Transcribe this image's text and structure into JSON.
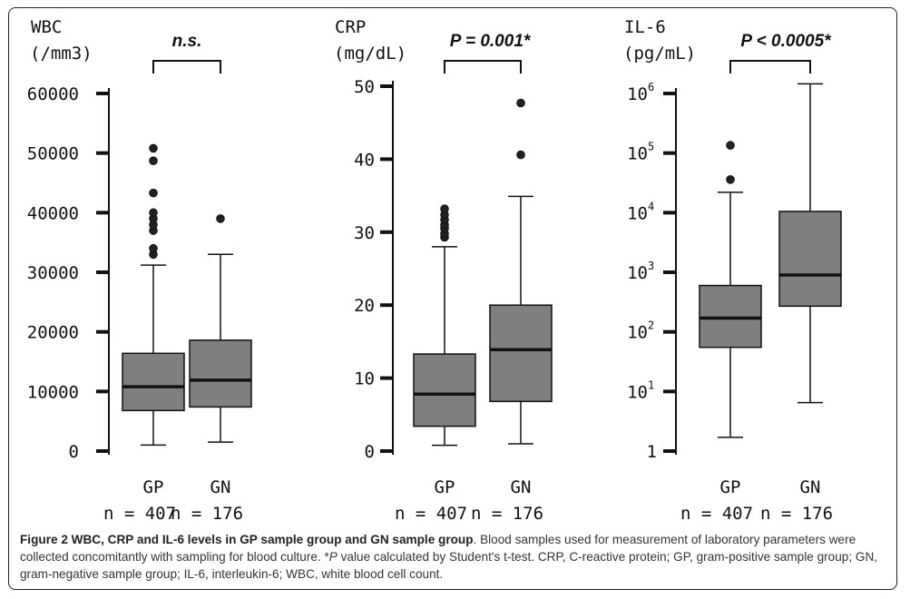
{
  "chart_data": [
    {
      "type": "box",
      "title": "WBC",
      "unit_label": "(/mm3)",
      "ylim": [
        0,
        60000
      ],
      "scale": "linear",
      "ticks": [
        {
          "v": 0,
          "t": "0"
        },
        {
          "v": 10000,
          "t": "10000"
        },
        {
          "v": 20000,
          "t": "20000"
        },
        {
          "v": 30000,
          "t": "30000"
        },
        {
          "v": 40000,
          "t": "40000"
        },
        {
          "v": 50000,
          "t": "50000"
        },
        {
          "v": 60000,
          "t": "60000"
        }
      ],
      "significance": "n.s.",
      "groups": [
        {
          "name": "GP",
          "n_label": "n = 407",
          "min": 1000,
          "q1": 6800,
          "median": 10800,
          "q3": 16400,
          "max": 31200,
          "outliers": [
            33000,
            34000,
            37000,
            38000,
            39000,
            40000,
            43300,
            48700,
            50800
          ]
        },
        {
          "name": "GN",
          "n_label": "n = 176",
          "min": 1500,
          "q1": 7400,
          "median": 11900,
          "q3": 18600,
          "max": 33000,
          "outliers": [
            39000
          ]
        }
      ]
    },
    {
      "type": "box",
      "title": "CRP",
      "unit_label": "(mg/dL)",
      "ylim": [
        0,
        50
      ],
      "scale": "linear",
      "ticks": [
        {
          "v": 0,
          "t": "0"
        },
        {
          "v": 10,
          "t": "10"
        },
        {
          "v": 20,
          "t": "20"
        },
        {
          "v": 30,
          "t": "30"
        },
        {
          "v": 40,
          "t": "40"
        },
        {
          "v": 50,
          "t": "50"
        }
      ],
      "significance": "P = 0.001*",
      "groups": [
        {
          "name": "GP",
          "n_label": "n = 407",
          "min": 0.8,
          "q1": 3.4,
          "median": 7.8,
          "q3": 13.3,
          "max": 28.0,
          "outliers": [
            29.3,
            29.8,
            30.5,
            31.0,
            31.7,
            32.4,
            33.2
          ]
        },
        {
          "name": "GN",
          "n_label": "n = 176",
          "min": 1.0,
          "q1": 6.8,
          "median": 13.9,
          "q3": 20.0,
          "max": 34.9,
          "outliers": [
            40.6,
            47.7
          ]
        }
      ]
    },
    {
      "type": "box",
      "title": "IL-6",
      "unit_label": "(pg/mL)",
      "ylim": [
        1,
        10000000
      ],
      "scale": "log",
      "ticks": [
        {
          "v": 1,
          "t": "1"
        },
        {
          "v": 10,
          "t": "10",
          "exp": "1"
        },
        {
          "v": 100,
          "t": "10",
          "exp": "2"
        },
        {
          "v": 1000,
          "t": "10",
          "exp": "3"
        },
        {
          "v": 10000,
          "t": "10",
          "exp": "4"
        },
        {
          "v": 100000,
          "t": "10",
          "exp": "5"
        },
        {
          "v": 1000000,
          "t": "10",
          "exp": "6"
        }
      ],
      "significance": "P < 0.0005*",
      "groups": [
        {
          "name": "GP",
          "n_label": "n = 407",
          "min": 1.7,
          "q1": 55,
          "median": 170,
          "q3": 600,
          "max": 22000,
          "outliers": [
            36000,
            135000
          ]
        },
        {
          "name": "GN",
          "n_label": "n = 176",
          "min": 6.5,
          "q1": 270,
          "median": 900,
          "q3": 10500,
          "max": 1450000,
          "outliers": []
        }
      ]
    }
  ],
  "caption": {
    "label": "Figure 2 WBC, CRP and IL-6 levels in GP sample group and GN sample group",
    "text_1": ". Blood samples used for measurement of laboratory parameters were collected concomitantly with sampling for blood culture. *",
    "p_italic": "P",
    "text_2": " value calculated by Student's t-test. CRP, C-reactive protein; GP, gram-positive sample group; GN, gram-negative sample group; IL-6, interleukin-6; WBC, white blood cell count."
  },
  "colors": {
    "box_fill": "#7f7f7f",
    "ink": "#111111"
  }
}
